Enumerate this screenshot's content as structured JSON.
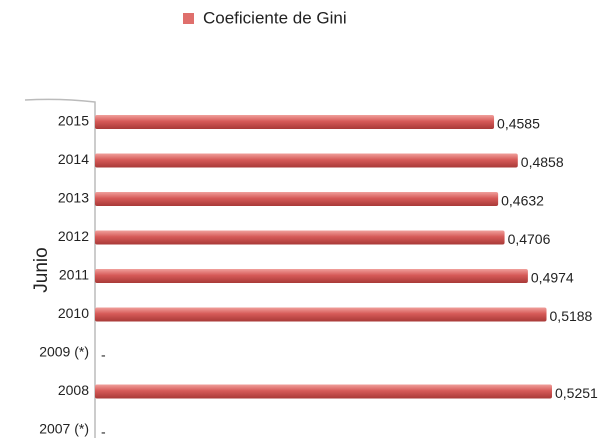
{
  "chart_data": {
    "type": "bar",
    "orientation": "horizontal",
    "legend": "Coeficiente de Gini",
    "y_label": "Junio",
    "categories": [
      "2015",
      "2014",
      "2013",
      "2012",
      "2011",
      "2010",
      "2009 (*)",
      "2008",
      "2007 (*)"
    ],
    "values": [
      0.4585,
      0.4858,
      0.4632,
      0.4706,
      0.4974,
      0.5188,
      null,
      0.5251,
      null
    ],
    "value_labels": [
      "0,4585",
      "0,4858",
      "0,4632",
      "0,4706",
      "0,4974",
      "0,5188",
      "-",
      "0,5251",
      "-"
    ],
    "color": "#d65a58"
  }
}
